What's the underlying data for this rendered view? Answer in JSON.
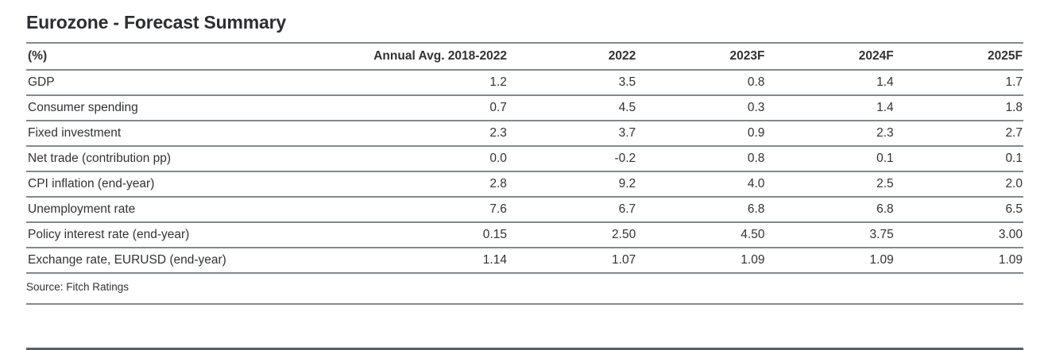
{
  "chart_data": {
    "type": "table",
    "title": "Eurozone - Forecast Summary",
    "unit_note": "(%)",
    "columns": [
      "(%)",
      "Annual Avg. 2018-2022",
      "2022",
      "2023F",
      "2024F",
      "2025F"
    ],
    "rows": [
      {
        "label": "GDP",
        "values": [
          "1.2",
          "3.5",
          "0.8",
          "1.4",
          "1.7"
        ]
      },
      {
        "label": "Consumer spending",
        "values": [
          "0.7",
          "4.5",
          "0.3",
          "1.4",
          "1.8"
        ]
      },
      {
        "label": "Fixed investment",
        "values": [
          "2.3",
          "3.7",
          "0.9",
          "2.3",
          "2.7"
        ]
      },
      {
        "label": "Net trade (contribution pp)",
        "values": [
          "0.0",
          "-0.2",
          "0.8",
          "0.1",
          "0.1"
        ]
      },
      {
        "label": "CPI inflation (end-year)",
        "values": [
          "2.8",
          "9.2",
          "4.0",
          "2.5",
          "2.0"
        ]
      },
      {
        "label": "Unemployment rate",
        "values": [
          "7.6",
          "6.7",
          "6.8",
          "6.8",
          "6.5"
        ]
      },
      {
        "label": "Policy interest rate (end-year)",
        "values": [
          "0.15",
          "2.50",
          "4.50",
          "3.75",
          "3.00"
        ]
      },
      {
        "label": "Exchange rate, EURUSD (end-year)",
        "values": [
          "1.14",
          "1.07",
          "1.09",
          "1.09",
          "1.09"
        ]
      }
    ],
    "source": "Source: Fitch Ratings",
    "legend_position": "none",
    "grid": "horizontal-rules-only"
  },
  "colors": {
    "title_text": "#2c2d30",
    "body_text": "#313234",
    "rule_gray": "#85888b",
    "rule_dark": "#56626b",
    "background": "#ffffff"
  }
}
